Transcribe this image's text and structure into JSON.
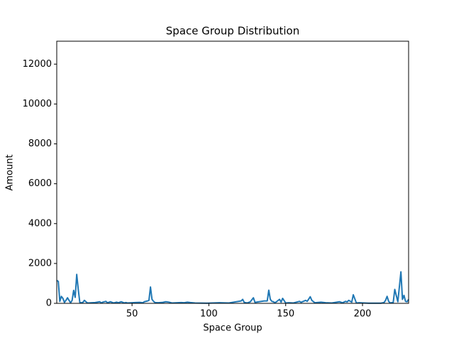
{
  "chart_data": {
    "type": "line",
    "title": "Space Group Distribution",
    "x_label": "Space Group",
    "y_label": "Amount",
    "x": [
      1,
      2,
      3,
      4,
      5,
      6,
      7,
      8,
      9,
      10,
      11,
      12,
      13,
      14,
      15,
      16,
      17,
      18,
      19,
      20,
      21,
      24,
      26,
      29,
      30,
      31,
      33,
      34,
      36,
      38,
      40,
      41,
      43,
      45,
      46,
      47,
      52,
      55,
      57,
      58,
      60,
      61,
      62,
      63,
      64,
      65,
      67,
      70,
      72,
      74,
      76,
      82,
      84,
      86,
      88,
      91,
      99,
      107,
      113,
      121,
      122,
      123,
      125,
      127,
      129,
      130,
      136,
      138,
      139,
      140,
      141,
      142,
      143,
      144,
      146,
      147,
      148,
      150,
      152,
      155,
      159,
      160,
      163,
      164,
      166,
      167,
      169,
      173,
      176,
      180,
      185,
      187,
      189,
      190,
      191,
      193,
      194,
      196,
      198,
      204,
      212,
      214,
      215,
      216,
      217,
      218,
      220,
      221,
      223,
      225,
      226,
      227,
      228,
      229,
      230
    ],
    "series": [
      {
        "name": "Amount",
        "color": "#1f77b4",
        "values": [
          1150,
          1100,
          100,
          350,
          250,
          50,
          150,
          280,
          150,
          30,
          150,
          650,
          300,
          1450,
          700,
          50,
          30,
          50,
          150,
          80,
          20,
          30,
          40,
          80,
          20,
          60,
          100,
          30,
          80,
          20,
          60,
          30,
          80,
          20,
          40,
          20,
          40,
          50,
          30,
          80,
          120,
          150,
          820,
          200,
          100,
          40,
          30,
          50,
          80,
          60,
          20,
          40,
          30,
          60,
          40,
          20,
          10,
          30,
          20,
          120,
          200,
          50,
          20,
          80,
          280,
          50,
          120,
          120,
          660,
          200,
          100,
          80,
          30,
          80,
          200,
          60,
          250,
          20,
          30,
          20,
          100,
          50,
          150,
          100,
          330,
          150,
          30,
          60,
          30,
          20,
          80,
          30,
          100,
          70,
          150,
          60,
          430,
          20,
          30,
          10,
          10,
          40,
          150,
          350,
          100,
          20,
          50,
          700,
          80,
          1580,
          200,
          400,
          100,
          80,
          200
        ]
      }
    ],
    "xlim": [
      1,
      230
    ],
    "ylim": [
      0,
      13150
    ],
    "xticks": [
      50,
      100,
      150,
      200
    ],
    "yticks": [
      0,
      2000,
      4000,
      6000,
      8000,
      10000,
      12000
    ]
  }
}
